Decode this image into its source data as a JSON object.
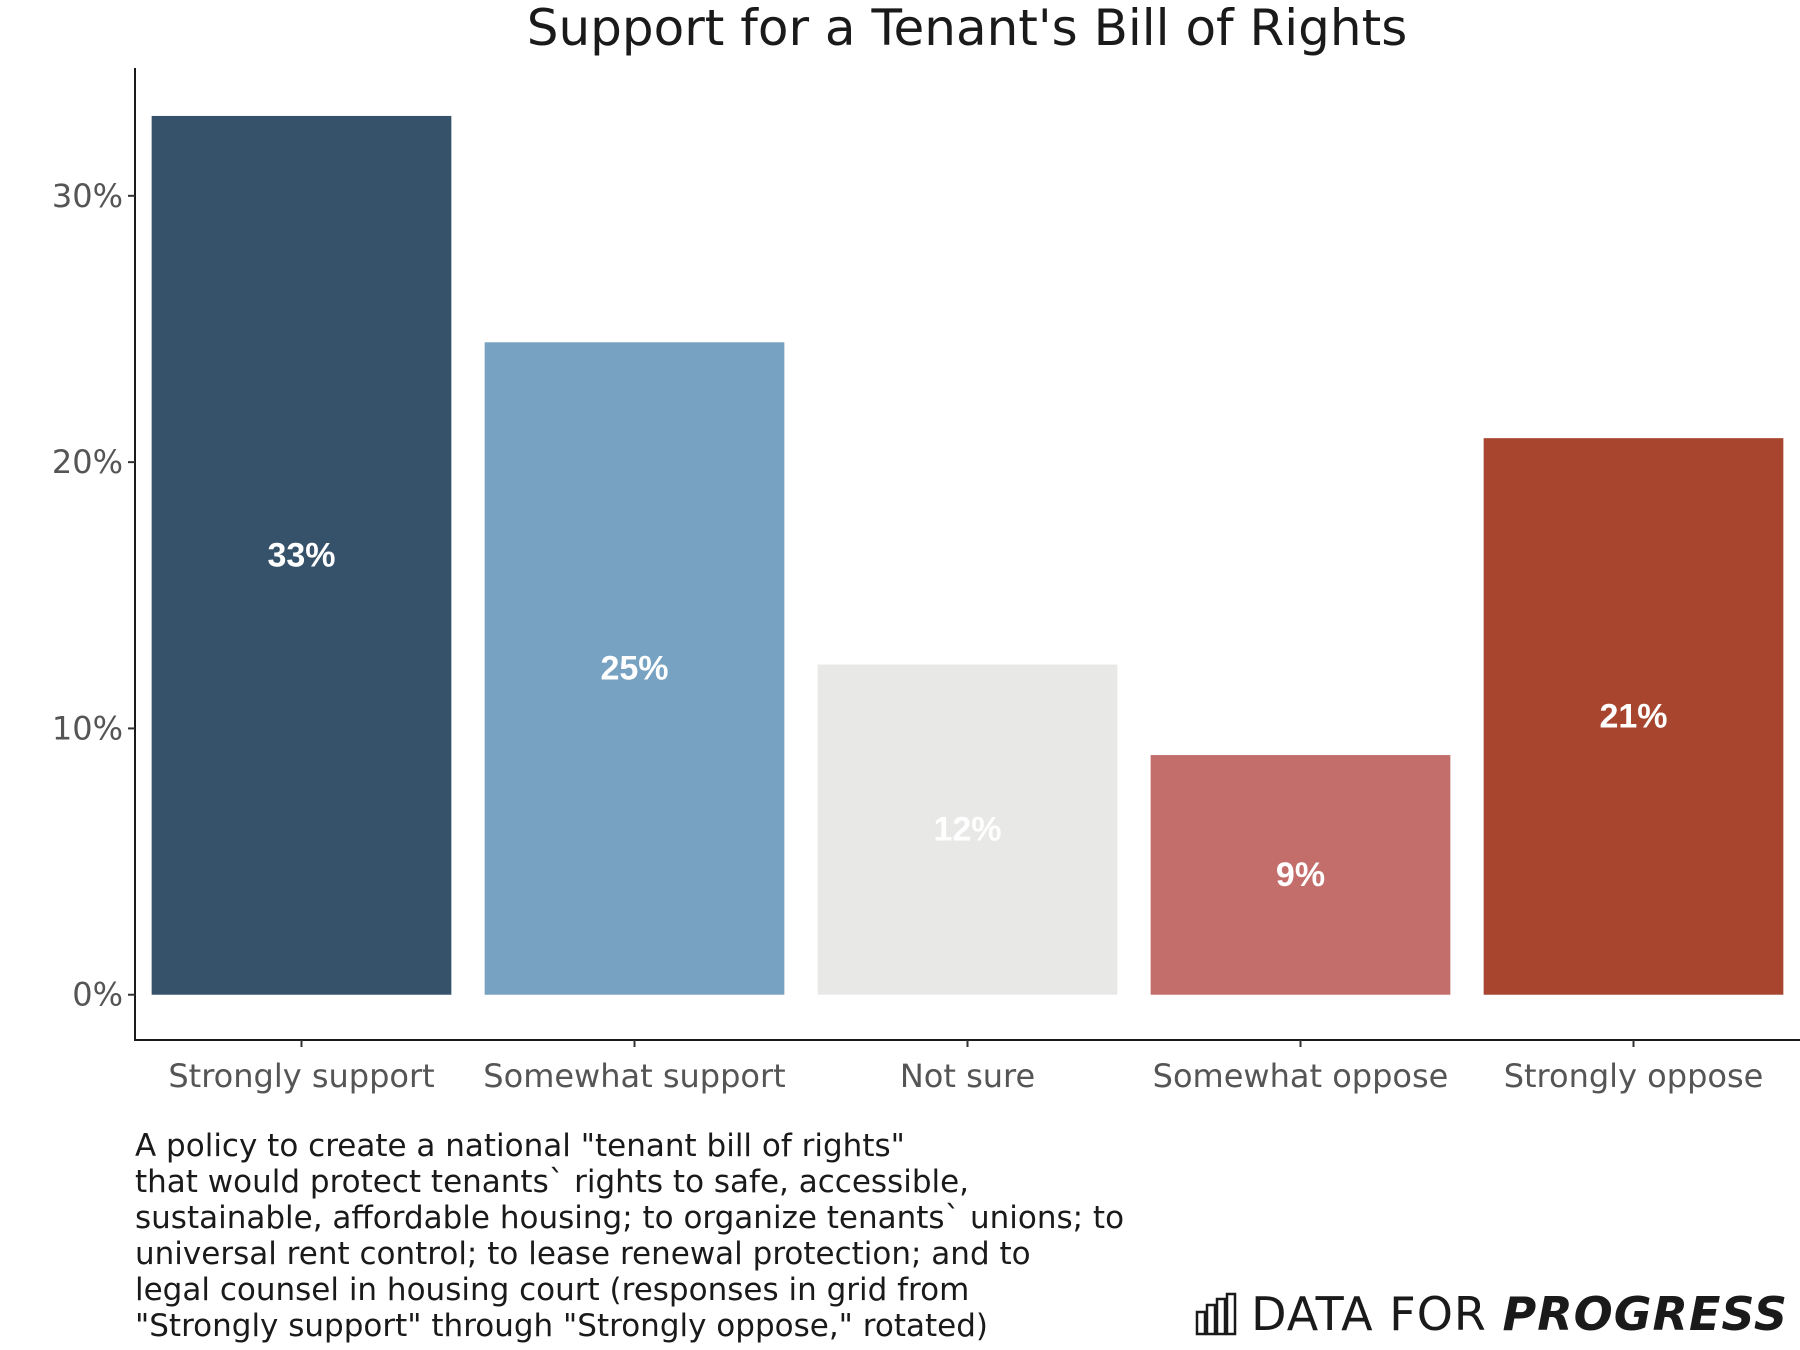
{
  "chart_data": {
    "type": "bar",
    "title": "Support for a Tenant's Bill of Rights",
    "categories": [
      "Strongly support",
      "Somewhat support",
      "Not sure",
      "Somewhat oppose",
      "Strongly oppose"
    ],
    "values": [
      33,
      24.5,
      12.4,
      9,
      20.9
    ],
    "data_labels": [
      "33%",
      "25%",
      "12%",
      "9%",
      "21%"
    ],
    "colors": [
      "#36516a",
      "#78a2c2",
      "#e8e8e6",
      "#c46e6b",
      "#a8452e"
    ],
    "xlabel": "",
    "ylabel": "",
    "ylim": [
      -1.7,
      34.8
    ],
    "yticks": [
      0,
      10,
      20,
      30
    ],
    "ytick_labels": [
      "0%",
      "10%",
      "20%",
      "30%"
    ],
    "grid": false,
    "legend": "none"
  },
  "caption": {
    "lines": [
      "A policy to create a national \"tenant bill of rights\"",
      "that would protect tenants` rights to safe, accessible,",
      "sustainable, affordable housing; to organize tenants` unions; to",
      "universal rent control; to lease renewal protection; and to",
      "legal counsel in housing court (responses in grid from",
      "\"Strongly support\" through \"Strongly oppose,\" rotated)"
    ]
  },
  "branding": {
    "text_regular": "DATA FOR ",
    "text_bold": "PROGRESS",
    "logo_icon": "bar-chart-logo-icon"
  }
}
